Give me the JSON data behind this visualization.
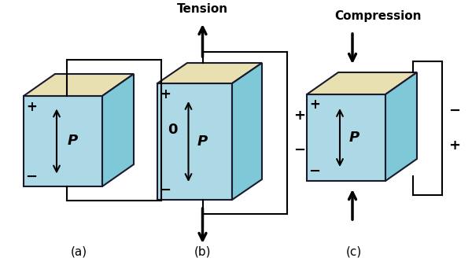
{
  "background_color": "#ffffff",
  "cube_face_color": "#add8e6",
  "cube_top_color": "#e8e0b0",
  "cube_side_color": "#7ec8d8",
  "outline_color": "#1a1a2e",
  "arrow_color": "#000000",
  "circuit_color": "#000000",
  "text_color": "#000000",
  "label_a": "(a)",
  "label_b": "(b)",
  "label_c": "(c)",
  "label_tension": "Tension",
  "label_compression": "Compression",
  "label_P": "P",
  "label_plus": "+",
  "label_minus": "−",
  "label_circuit_a": "0",
  "label_circuit_b_top": "+",
  "label_circuit_b_bot": "−",
  "label_circuit_c_top": "−",
  "label_circuit_c_bot": "+",
  "figsize": [
    6.0,
    3.42
  ],
  "dpi": 100
}
